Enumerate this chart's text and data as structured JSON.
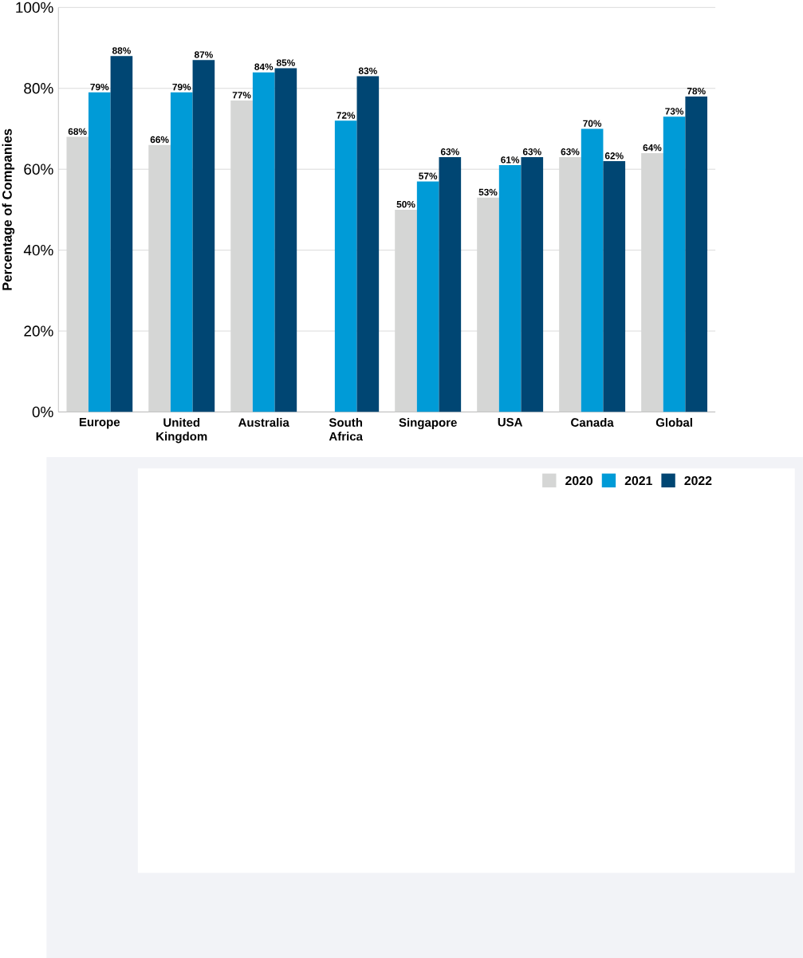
{
  "chart_data": {
    "type": "bar",
    "ylabel": "Percentage of Companies",
    "categories": [
      "Europe",
      "United Kingdom",
      "Australia",
      "South Africa",
      "Singapore",
      "USA",
      "Canada",
      "Global"
    ],
    "series": [
      {
        "name": "2020",
        "color": "#d5d6d5",
        "values": [
          68,
          66,
          77,
          null,
          50,
          53,
          63,
          64
        ],
        "value_labels": [
          "68%",
          "66%",
          "77%",
          null,
          "50%",
          "53%",
          "63%",
          "64%"
        ]
      },
      {
        "name": "2021",
        "color": "#009bd7",
        "values": [
          79,
          79,
          84,
          72,
          57,
          61,
          70,
          73
        ],
        "value_labels": [
          "79%",
          "79%",
          "84%",
          "72%",
          "57%",
          "61%",
          "70%",
          "73%"
        ]
      },
      {
        "name": "2022",
        "color": "#004673",
        "values": [
          88,
          87,
          85,
          83,
          63,
          63,
          62,
          78
        ],
        "value_labels": [
          "88%",
          "87%",
          "85%",
          "83%",
          "63%",
          "63%",
          "62%",
          "78%"
        ]
      }
    ],
    "ylim": [
      0,
      100
    ],
    "yticks": [
      {
        "value": 0,
        "label": "0%"
      },
      {
        "value": 20,
        "label": "20%"
      },
      {
        "value": 40,
        "label": "40%"
      },
      {
        "value": 60,
        "label": "60%"
      },
      {
        "value": 80,
        "label": "80%"
      },
      {
        "value": 100,
        "label": "100%"
      }
    ],
    "grid": "y",
    "legend": "bottom right"
  }
}
